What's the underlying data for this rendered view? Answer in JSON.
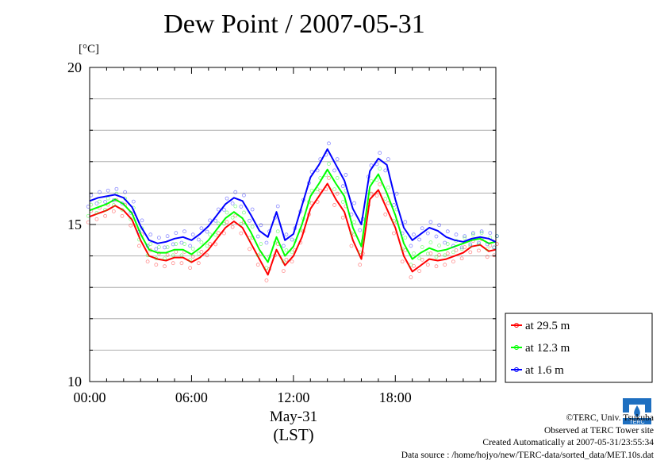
{
  "title": "Dew Point / 2007-05-31",
  "unit_label": "[°C]",
  "date_label": "May-31",
  "time_zone_label": "(LST)",
  "credits": [
    "©TERC, Univ. Tsukuba",
    "Observed at TERC Tower site",
    "Created Automatically at 2007-05-31/23:55:34",
    "Data source : /home/hojyo/new/TERC-data/sorted_data/MET.10s.dat"
  ],
  "logo_text": "TERC",
  "chart_data": {
    "type": "line",
    "title": "Dew Point / 2007-05-31",
    "xlabel": "May-31 (LST)",
    "ylabel": "[°C]",
    "xlim": [
      0,
      23.92
    ],
    "ylim": [
      10,
      20
    ],
    "x_unit": "hour of day (LST)",
    "xticks": [
      {
        "value": 0,
        "label": "00:00"
      },
      {
        "value": 6,
        "label": "06:00"
      },
      {
        "value": 12,
        "label": "12:00"
      },
      {
        "value": 18,
        "label": "18:00"
      }
    ],
    "yticks": [
      {
        "value": 10,
        "label": "10"
      },
      {
        "value": 15,
        "label": "15"
      },
      {
        "value": 20,
        "label": "20"
      }
    ],
    "grid": true,
    "legend_position": "right-bottom, outside plot",
    "x": [
      0,
      0.5,
      1,
      1.5,
      2,
      2.5,
      3,
      3.5,
      4,
      4.5,
      5,
      5.5,
      6,
      6.5,
      7,
      7.5,
      8,
      8.5,
      9,
      9.5,
      10,
      10.5,
      11,
      11.5,
      12,
      12.5,
      13,
      13.5,
      14,
      14.5,
      15,
      15.5,
      16,
      16.5,
      17,
      17.5,
      18,
      18.5,
      19,
      19.5,
      20,
      20.5,
      21,
      21.5,
      22,
      22.5,
      23,
      23.5,
      23.9
    ],
    "series": [
      {
        "name": "at 29.5 m",
        "color": "#ff0000",
        "values": [
          15.25,
          15.35,
          15.45,
          15.6,
          15.45,
          15.15,
          14.5,
          14.0,
          13.9,
          13.85,
          13.95,
          13.95,
          13.8,
          13.95,
          14.2,
          14.55,
          14.9,
          15.1,
          14.9,
          14.4,
          13.9,
          13.4,
          14.2,
          13.7,
          14.0,
          14.6,
          15.5,
          15.9,
          16.3,
          15.8,
          15.4,
          14.5,
          13.9,
          15.8,
          16.1,
          15.5,
          14.9,
          14.0,
          13.5,
          13.7,
          13.9,
          13.85,
          13.9,
          14.0,
          14.1,
          14.3,
          14.35,
          14.15,
          14.2
        ]
      },
      {
        "name": "at 12.3 m",
        "color": "#00ff00",
        "values": [
          15.45,
          15.55,
          15.65,
          15.8,
          15.65,
          15.35,
          14.7,
          14.2,
          14.1,
          14.1,
          14.2,
          14.2,
          14.05,
          14.25,
          14.5,
          14.85,
          15.2,
          15.4,
          15.2,
          14.75,
          14.2,
          13.8,
          14.6,
          14.0,
          14.3,
          15.0,
          15.9,
          16.3,
          16.75,
          16.3,
          15.9,
          14.9,
          14.3,
          16.2,
          16.6,
          16.0,
          15.3,
          14.4,
          13.9,
          14.1,
          14.25,
          14.15,
          14.2,
          14.3,
          14.4,
          14.5,
          14.55,
          14.4,
          14.45
        ]
      },
      {
        "name": "at 1.6 m",
        "color": "#0000ff",
        "values": [
          15.75,
          15.85,
          15.9,
          15.95,
          15.85,
          15.55,
          14.95,
          14.5,
          14.4,
          14.45,
          14.55,
          14.6,
          14.5,
          14.7,
          14.95,
          15.3,
          15.65,
          15.85,
          15.75,
          15.3,
          14.8,
          14.6,
          15.4,
          14.5,
          14.7,
          15.6,
          16.5,
          16.9,
          17.4,
          16.9,
          16.4,
          15.5,
          15.0,
          16.7,
          17.1,
          16.9,
          15.8,
          14.9,
          14.5,
          14.7,
          14.9,
          14.8,
          14.6,
          14.5,
          14.45,
          14.55,
          14.6,
          14.55,
          14.45
        ]
      }
    ]
  }
}
